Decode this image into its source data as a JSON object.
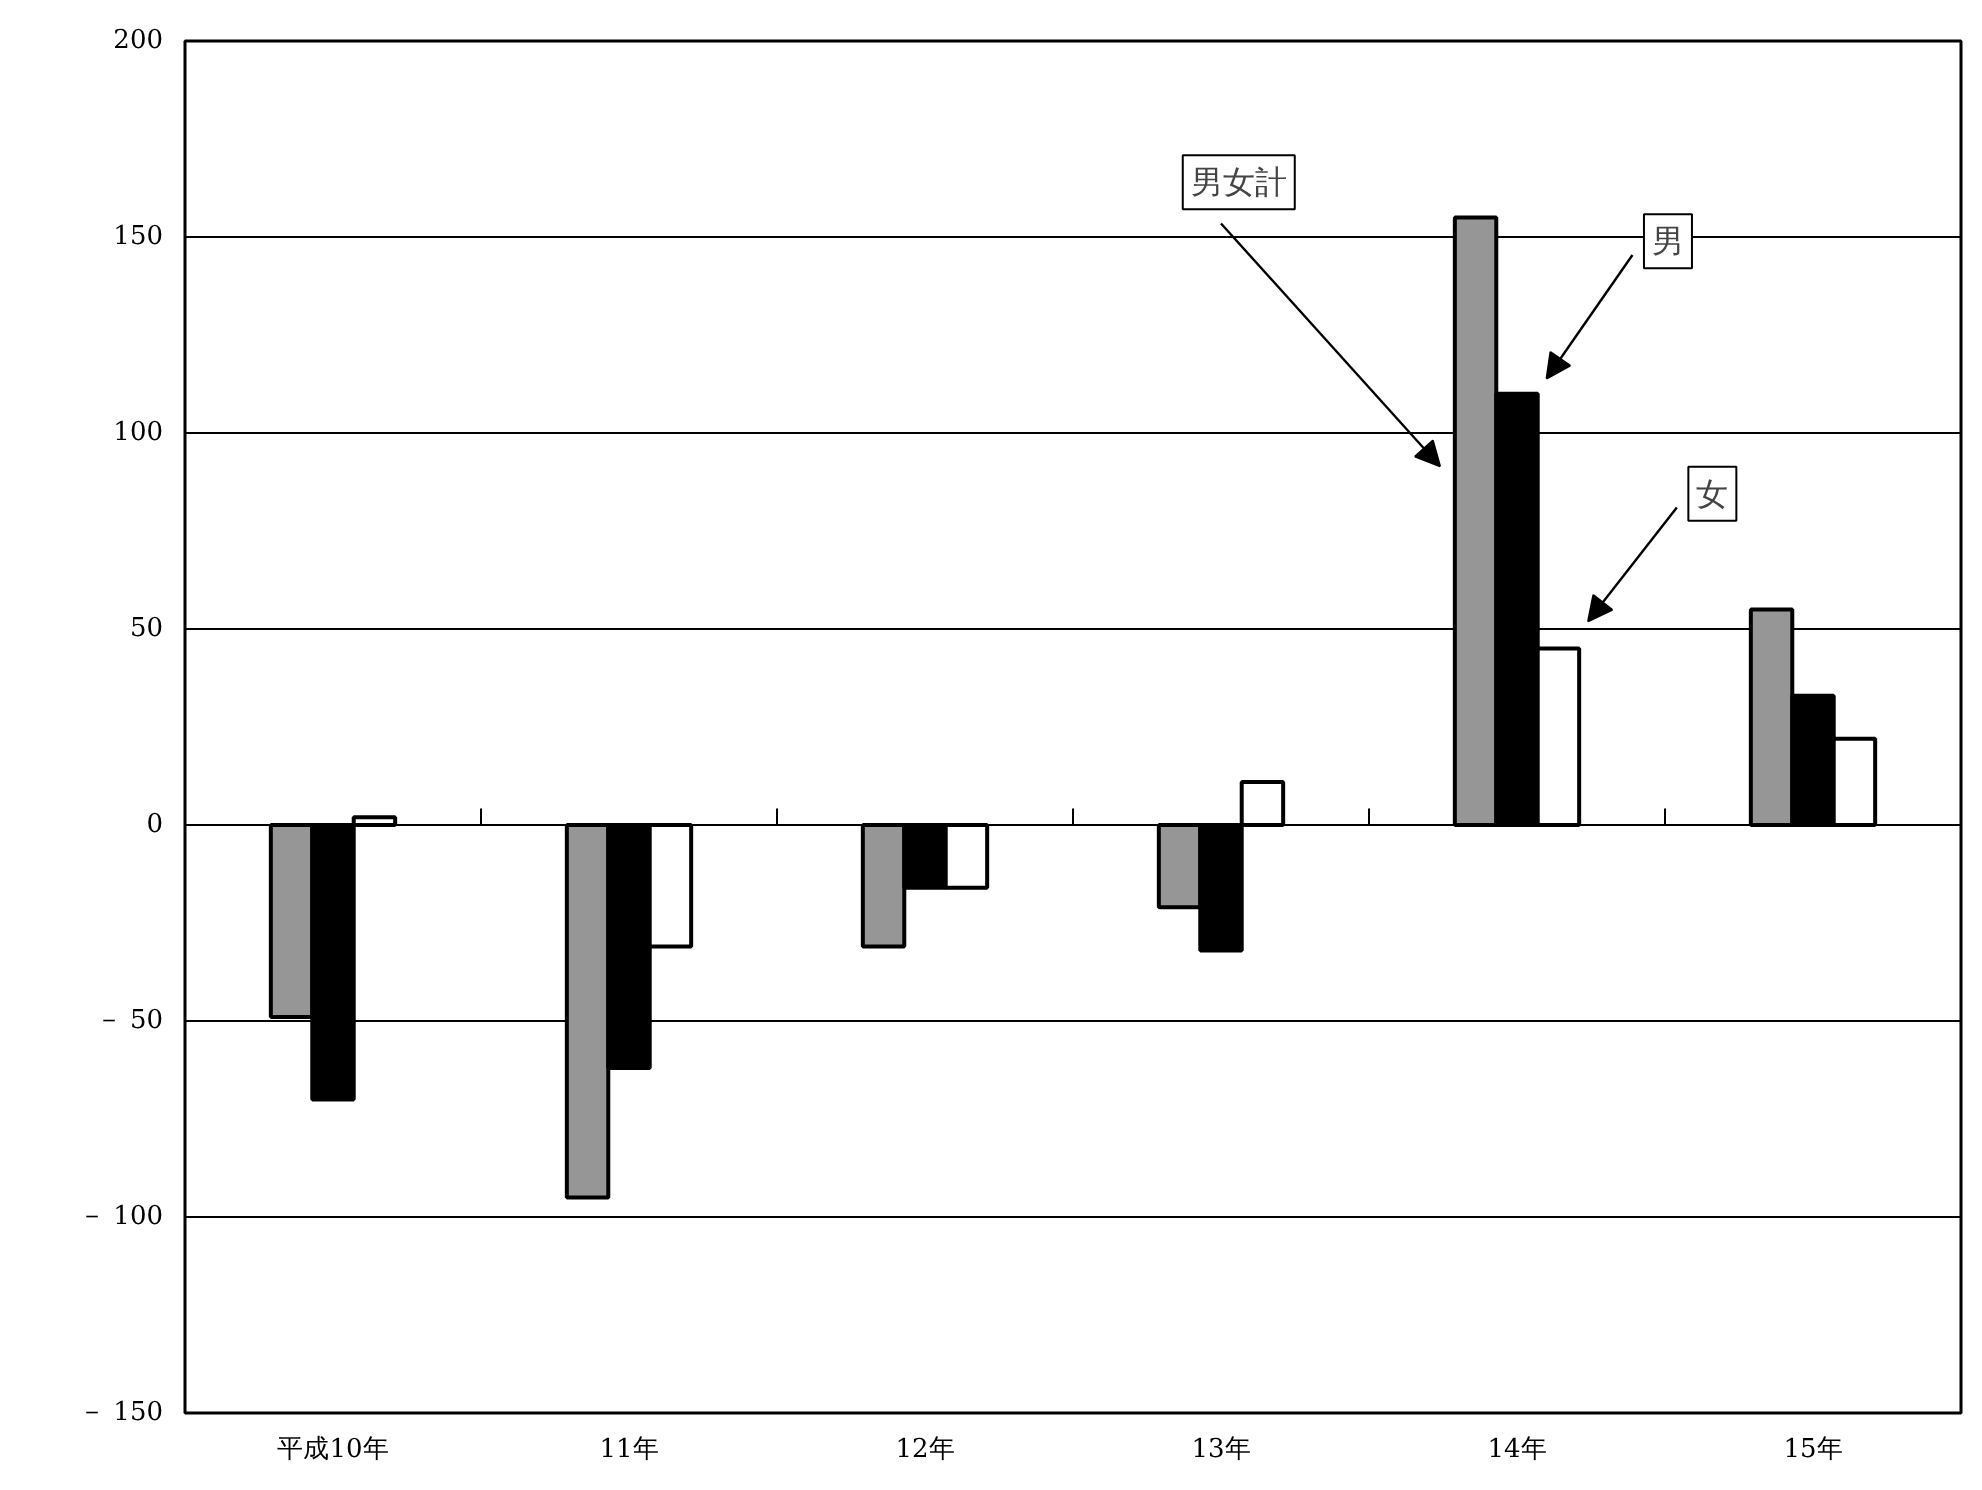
{
  "chart_data": {
    "type": "bar",
    "categories": [
      "平成10年",
      "11年",
      "12年",
      "13年",
      "14年",
      "15年"
    ],
    "series": [
      {
        "name": "男女計",
        "color": "#969696",
        "values": [
          -49,
          -95,
          -31,
          -21,
          155,
          55
        ]
      },
      {
        "name": "男",
        "color": "#000000",
        "values": [
          -70,
          -62,
          -16,
          -32,
          110,
          33
        ]
      },
      {
        "name": "女",
        "color": "#ffffff",
        "values": [
          2,
          -31,
          -16,
          11,
          45,
          22
        ]
      }
    ],
    "ylim": [
      -150,
      200
    ],
    "yticks": [
      {
        "value": -150,
        "label": "－ 150"
      },
      {
        "value": -100,
        "label": "－ 100"
      },
      {
        "value": -50,
        "label": "－ 50"
      },
      0,
      50,
      100,
      150,
      200
    ],
    "grid": "y",
    "legend": "top right"
  }
}
